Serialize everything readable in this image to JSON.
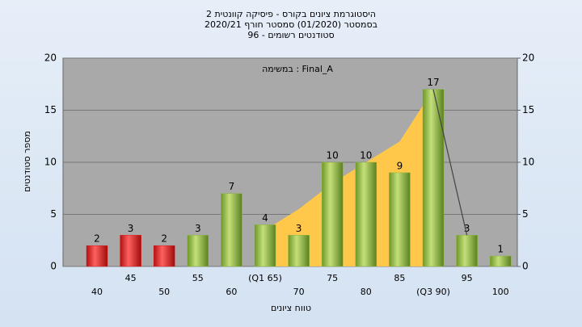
{
  "chart_data": {
    "type": "bar",
    "title": "היסטוגרמת ציונים בקורס - פיסיקה קוונטית 2",
    "subtitle": "בסמסטר (01/2020) סמסטר חורף 2020/21",
    "subtitle2": "סטודנטים רשומים - 96",
    "annotation": "במשימה : Final_A",
    "x_label": "טווח ציונים",
    "y_label": "מספר סטודנטים",
    "categories": [
      "40",
      "45",
      "50",
      "55",
      "60",
      "(Q1 65)",
      "70",
      "75",
      "80",
      "85",
      "(Q3 90)",
      "95",
      "100"
    ],
    "values": [
      2,
      3,
      2,
      3,
      7,
      4,
      3,
      10,
      10,
      9,
      17,
      3,
      1
    ],
    "colors": [
      "#d82020",
      "#d82020",
      "#d82020",
      "#8cb43c",
      "#8cb43c",
      "#8cb43c",
      "#8cb43c",
      "#8cb43c",
      "#8cb43c",
      "#8cb43c",
      "#8cb43c",
      "#8cb43c",
      "#8cb43c"
    ],
    "area_color": "#ffc84a",
    "area_values": [
      null,
      null,
      null,
      null,
      null,
      3.5,
      5.5,
      8,
      10,
      12,
      17,
      null,
      null
    ],
    "line_values": [
      null,
      null,
      null,
      null,
      null,
      null,
      null,
      null,
      null,
      null,
      17,
      3,
      null
    ],
    "ylim": [
      0,
      20
    ],
    "yticks": [
      0,
      5,
      10,
      15,
      20
    ],
    "y2lim": [
      0,
      20
    ],
    "y2ticks": [
      0,
      5,
      10,
      15,
      20
    ],
    "grid": true
  }
}
